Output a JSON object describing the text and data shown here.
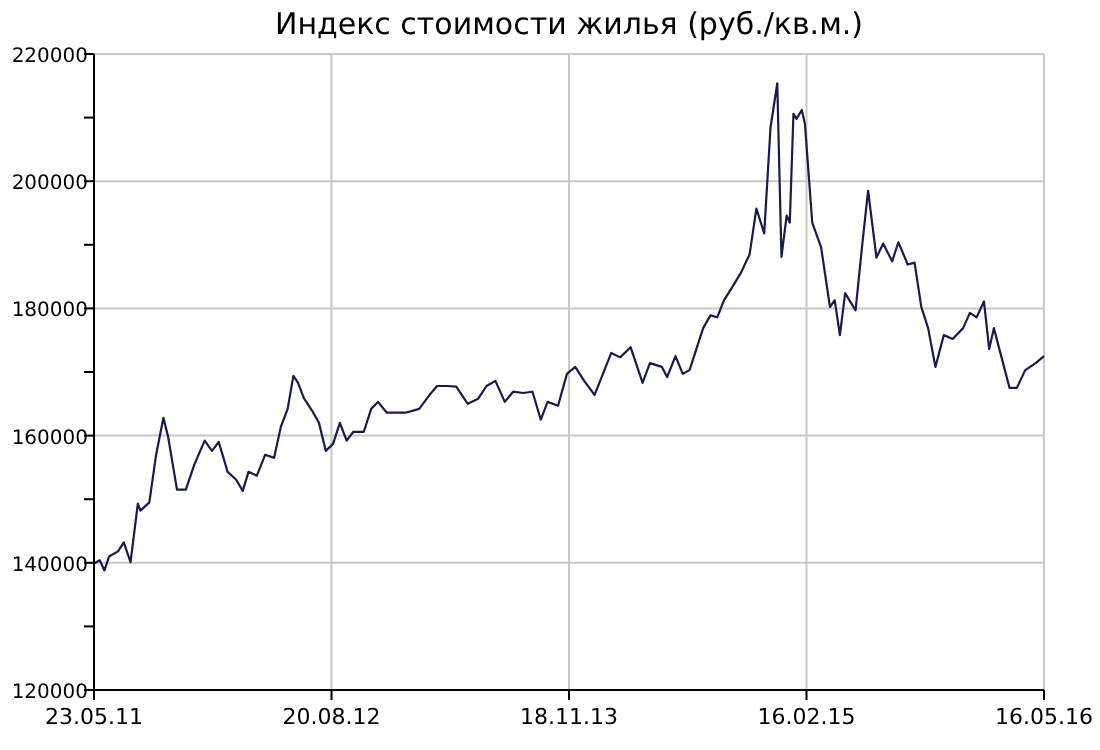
{
  "chart_data": {
    "type": "line",
    "title": "Индекс стоимости жилья (руб./кв.м.)",
    "x": [
      "2011-05-23",
      "2011-06-03",
      "2011-06-12",
      "2011-06-21",
      "2011-07-08",
      "2011-07-19",
      "2011-08-01",
      "2011-08-15",
      "2011-08-20",
      "2011-09-06",
      "2011-09-19",
      "2011-10-03",
      "2011-10-12",
      "2011-10-29",
      "2011-11-15",
      "2011-12-01",
      "2011-12-21",
      "2012-01-04",
      "2012-01-17",
      "2012-02-03",
      "2012-02-19",
      "2012-03-03",
      "2012-03-14",
      "2012-03-30",
      "2012-04-15",
      "2012-05-02",
      "2012-05-15",
      "2012-05-28",
      "2012-06-08",
      "2012-06-17",
      "2012-06-28",
      "2012-07-14",
      "2012-07-27",
      "2012-08-09",
      "2012-08-23",
      "2012-09-05",
      "2012-09-18",
      "2012-10-01",
      "2012-10-21",
      "2012-11-04",
      "2012-11-17",
      "2012-12-04",
      "2012-12-20",
      "2013-01-09",
      "2013-02-04",
      "2013-02-24",
      "2013-03-10",
      "2013-03-30",
      "2013-04-16",
      "2013-05-08",
      "2013-05-28",
      "2013-06-13",
      "2013-06-30",
      "2013-07-18",
      "2013-08-03",
      "2013-08-22",
      "2013-09-09",
      "2013-09-25",
      "2013-10-08",
      "2013-10-28",
      "2013-11-14",
      "2013-11-30",
      "2013-12-17",
      "2014-01-06",
      "2014-01-22",
      "2014-02-07",
      "2014-02-24",
      "2014-03-16",
      "2014-04-08",
      "2014-04-22",
      "2014-05-15",
      "2014-05-25",
      "2014-06-10",
      "2014-06-24",
      "2014-07-07",
      "2014-07-20",
      "2014-08-02",
      "2014-08-16",
      "2014-08-29",
      "2014-09-11",
      "2014-09-28",
      "2014-10-14",
      "2014-10-30",
      "2014-11-12",
      "2014-11-27",
      "2014-12-09",
      "2014-12-22",
      "2014-12-30",
      "2015-01-09",
      "2015-01-15",
      "2015-01-22",
      "2015-01-28",
      "2015-02-07",
      "2015-02-13",
      "2015-02-27",
      "2015-03-16",
      "2015-04-02",
      "2015-04-11",
      "2015-04-21",
      "2015-05-01",
      "2015-05-21",
      "2015-06-03",
      "2015-06-14",
      "2015-06-30",
      "2015-07-13",
      "2015-07-30",
      "2015-08-11",
      "2015-08-29",
      "2015-09-11",
      "2015-09-24",
      "2015-10-07",
      "2015-10-21",
      "2015-11-06",
      "2015-11-23",
      "2015-12-13",
      "2015-12-26",
      "2016-01-08",
      "2016-01-22",
      "2016-02-01",
      "2016-02-10",
      "2016-02-24",
      "2016-03-11",
      "2016-03-25",
      "2016-04-10",
      "2016-04-30",
      "2016-05-16"
    ],
    "series": [
      {
        "color": "#1a1a4e",
        "values": [
          139900,
          140400,
          138800,
          141000,
          141800,
          143200,
          140100,
          149300,
          148200,
          149500,
          157000,
          162800,
          159800,
          151500,
          151500,
          155400,
          159200,
          157600,
          159000,
          154300,
          153100,
          151300,
          154300,
          153700,
          157000,
          156500,
          161400,
          164200,
          169400,
          168300,
          165900,
          163900,
          162000,
          157600,
          158700,
          162000,
          159200,
          160600,
          160600,
          164200,
          165300,
          163600,
          163600,
          163600,
          164200,
          166400,
          167800,
          167800,
          167700,
          165000,
          165800,
          167800,
          168600,
          165300,
          166900,
          166700,
          166900,
          162500,
          165300,
          164700,
          169700,
          170800,
          168600,
          166400,
          169700,
          173000,
          172300,
          173900,
          168300,
          171400,
          170800,
          169200,
          172500,
          169700,
          170300,
          173600,
          176900,
          178900,
          178600,
          181300,
          183500,
          185700,
          188500,
          195700,
          191800,
          208400,
          215400,
          188100,
          194600,
          193500,
          210600,
          209800,
          211200,
          209000,
          193500,
          189600,
          180200,
          181300,
          175800,
          182400,
          179700,
          190200,
          198500,
          188000,
          190200,
          187400,
          190400,
          186900,
          187200,
          180200,
          176900,
          170800,
          175800,
          175200,
          176900,
          179300,
          178600,
          181100,
          173600,
          176900,
          172500,
          167500,
          167500,
          170300,
          171400,
          172500
        ]
      }
    ],
    "xlim": [
      "2011-05-23",
      "2016-05-16"
    ],
    "xticks": [
      {
        "value": "2011-05-23",
        "label": "23.05.11"
      },
      {
        "value": "2012-08-20",
        "label": "20.08.12"
      },
      {
        "value": "2013-11-18",
        "label": "18.11.13"
      },
      {
        "value": "2015-02-16",
        "label": "16.02.15"
      },
      {
        "value": "2016-05-16",
        "label": "16.05.16"
      }
    ],
    "ylim": [
      120000,
      220000
    ],
    "yticks": [
      120000,
      {
        "value": 130000,
        "label": null
      },
      140000,
      {
        "value": 150000,
        "label": null
      },
      160000,
      {
        "value": 170000,
        "label": null
      },
      180000,
      {
        "value": 190000,
        "label": null
      },
      200000,
      {
        "value": 210000,
        "label": null
      },
      220000
    ],
    "grid": true
  }
}
